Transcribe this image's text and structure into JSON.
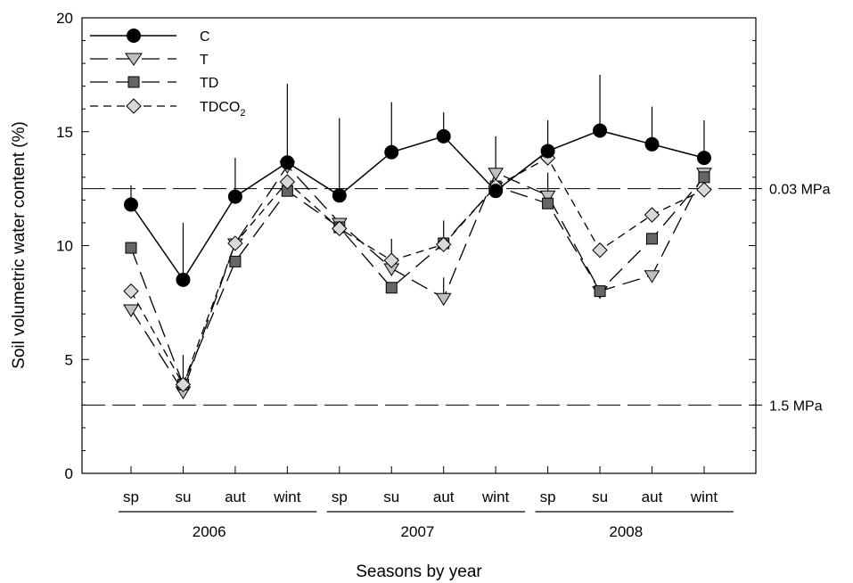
{
  "chart_data": {
    "type": "line",
    "xlabel": "Seasons by year",
    "ylabel": "Soil volumetric water content (%)",
    "ylim": [
      0,
      20
    ],
    "yticks": [
      0,
      5,
      10,
      15,
      20
    ],
    "categories": [
      "sp",
      "su",
      "aut",
      "wint",
      "sp",
      "su",
      "aut",
      "wint",
      "sp",
      "su",
      "aut",
      "wint"
    ],
    "groups": [
      {
        "label": "2006",
        "from": 0,
        "to": 3
      },
      {
        "label": "2007",
        "from": 4,
        "to": 7
      },
      {
        "label": "2008",
        "from": 8,
        "to": 11
      }
    ],
    "series": [
      {
        "name": "C",
        "marker": "circle",
        "line": "solid",
        "color": "#000000",
        "values": [
          11.8,
          8.5,
          12.15,
          13.65,
          12.2,
          14.1,
          14.8,
          12.4,
          14.15,
          15.05,
          14.45,
          13.85
        ],
        "errors": [
          0.85,
          2.5,
          1.7,
          3.45,
          3.4,
          2.2,
          1.05,
          0.0,
          1.35,
          2.45,
          1.65,
          1.65
        ]
      },
      {
        "name": "T",
        "marker": "triangle-down",
        "line": "dashed",
        "color": "#bfbfbf",
        "values": [
          7.2,
          3.6,
          10.1,
          13.5,
          11.0,
          9.0,
          7.7,
          13.2,
          12.2,
          8.0,
          8.7,
          13.2
        ],
        "errors": [
          0.0,
          1.6,
          0.0,
          0.0,
          0.0,
          1.3,
          0.9,
          1.6,
          1.0,
          0.0,
          0.0,
          0.0
        ]
      },
      {
        "name": "TD",
        "marker": "square",
        "line": "dashed",
        "color": "#666666",
        "values": [
          9.9,
          3.9,
          9.3,
          12.4,
          10.8,
          8.15,
          10.1,
          12.6,
          11.85,
          8.0,
          10.3,
          13.0
        ],
        "errors": [
          0.0,
          0.0,
          0.0,
          0.0,
          0.0,
          0.0,
          1.0,
          0.0,
          0.0,
          0.0,
          0.0,
          0.0
        ]
      },
      {
        "name": "TDCO2",
        "marker": "diamond",
        "line": "short-dashed",
        "color": "#d9d9d9",
        "values": [
          8.0,
          3.9,
          10.1,
          12.8,
          10.75,
          9.35,
          10.05,
          12.6,
          13.85,
          9.8,
          11.35,
          12.45
        ],
        "errors": [
          0.0,
          0.0,
          0.0,
          0.0,
          0.0,
          0.0,
          0.0,
          0.0,
          0.0,
          0.0,
          0.0,
          0.0
        ]
      }
    ],
    "reference_lines": [
      {
        "y": 12.5,
        "label": "0.03 MPa",
        "style": "dashed"
      },
      {
        "y": 3.0,
        "label": "1.5 MPa",
        "style": "dashed"
      }
    ],
    "legend": {
      "position": "top-left",
      "entries": [
        "C",
        "T",
        "TD",
        "TDCO"
      ],
      "subscript": "2"
    },
    "grid": false
  }
}
